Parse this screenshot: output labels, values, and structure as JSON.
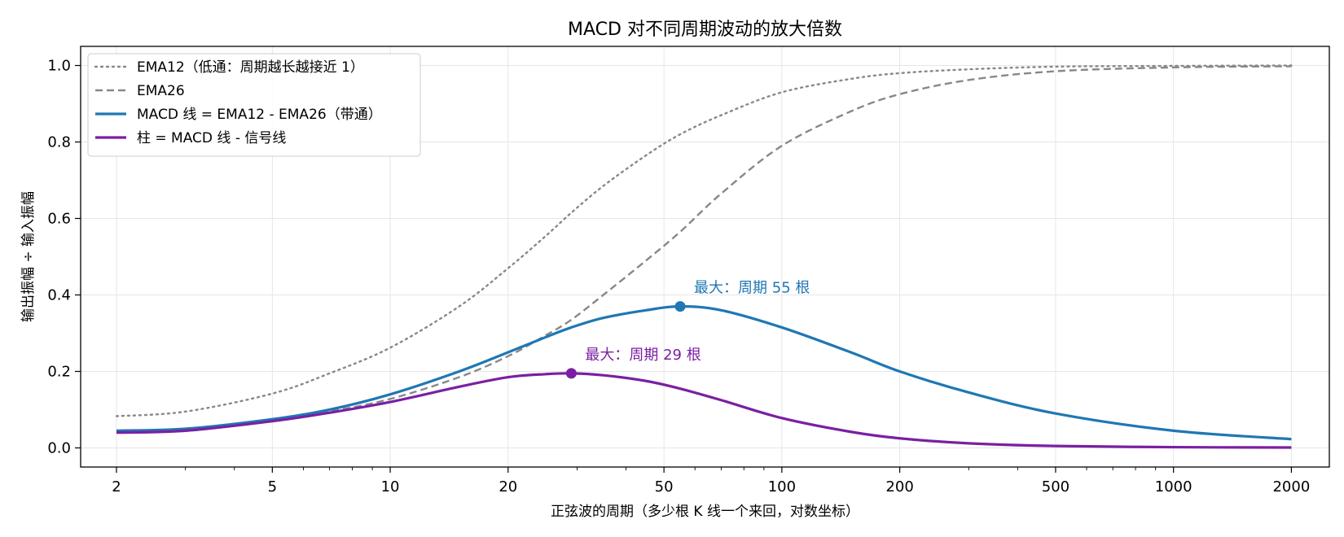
{
  "chart_data": {
    "type": "line",
    "title": "MACD 对不同周期波动的放大倍数",
    "xlabel": "正弦波的周期（多少根 K 线一个来回，对数坐标）",
    "ylabel": "输出振幅 ÷ 输入振幅",
    "x_scale": "log",
    "xlim": [
      1.62,
      2500
    ],
    "ylim": [
      -0.05,
      1.05
    ],
    "x_ticks": [
      2,
      5,
      10,
      20,
      50,
      100,
      200,
      500,
      1000,
      2000
    ],
    "x_tick_labels": [
      "2",
      "5",
      "10",
      "20",
      "50",
      "100",
      "200",
      "500",
      "1000",
      "2000"
    ],
    "y_ticks": [
      0.0,
      0.2,
      0.4,
      0.6,
      0.8,
      1.0
    ],
    "y_tick_labels": [
      "0.0",
      "0.2",
      "0.4",
      "0.6",
      "0.8",
      "1.0"
    ],
    "grid": true,
    "legend_position": "top-left",
    "x": [
      2,
      3,
      5,
      7,
      10,
      15,
      20,
      25,
      29,
      35,
      45,
      55,
      70,
      100,
      150,
      200,
      300,
      500,
      1000,
      2000
    ],
    "series": [
      {
        "name": "EMA12（低通：周期越长越接近 1）",
        "color": "#888888",
        "style": "dotted",
        "values": [
          0.083,
          0.095,
          0.142,
          0.195,
          0.262,
          0.37,
          0.47,
          0.555,
          0.615,
          0.685,
          0.765,
          0.82,
          0.87,
          0.93,
          0.965,
          0.98,
          0.99,
          0.997,
          0.999,
          1.0
        ]
      },
      {
        "name": "EMA26",
        "color": "#888888",
        "style": "dashed",
        "values": [
          0.04,
          0.048,
          0.072,
          0.095,
          0.128,
          0.185,
          0.24,
          0.295,
          0.335,
          0.4,
          0.49,
          0.565,
          0.665,
          0.79,
          0.88,
          0.925,
          0.962,
          0.985,
          0.995,
          0.998
        ]
      },
      {
        "name": "MACD 线 = EMA12 - EMA26（带通）",
        "color": "#1f77b4",
        "style": "solid",
        "values": [
          0.045,
          0.05,
          0.075,
          0.1,
          0.14,
          0.2,
          0.25,
          0.29,
          0.315,
          0.34,
          0.36,
          0.37,
          0.36,
          0.315,
          0.25,
          0.2,
          0.145,
          0.09,
          0.045,
          0.023
        ]
      },
      {
        "name": "柱 = MACD 线 - 信号线",
        "color": "#7b1fa2",
        "style": "solid",
        "values": [
          0.04,
          0.045,
          0.07,
          0.092,
          0.12,
          0.16,
          0.185,
          0.193,
          0.195,
          0.19,
          0.175,
          0.155,
          0.125,
          0.078,
          0.042,
          0.025,
          0.012,
          0.005,
          0.002,
          0.001
        ]
      }
    ],
    "annotations": [
      {
        "text": "最大：周期 55 根",
        "x": 55,
        "y": 0.37,
        "color": "#1f77b4"
      },
      {
        "text": "最大：周期 29 根",
        "x": 29,
        "y": 0.195,
        "color": "#7b1fa2"
      }
    ]
  }
}
